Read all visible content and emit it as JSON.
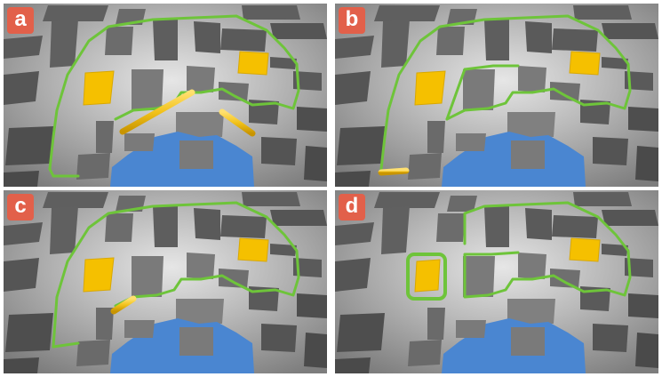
{
  "panels": [
    {
      "id": "a",
      "label": "a"
    },
    {
      "id": "b",
      "label": "b"
    },
    {
      "id": "c",
      "label": "c"
    },
    {
      "id": "d",
      "label": "d"
    }
  ],
  "colors": {
    "label_badge": "#e2604a",
    "boundary_path": "#6ec43a",
    "highlight_segment": "#f1c418",
    "target_block": "#f5c000",
    "water": "#4a86d1",
    "building_top": "#6f6f6f",
    "building_side": "#3f3f3f",
    "ground": "#9c9c9c"
  }
}
